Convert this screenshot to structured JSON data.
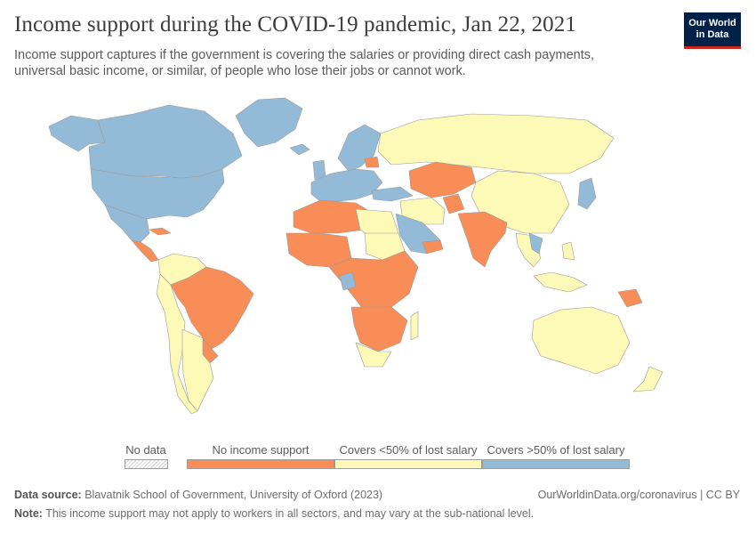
{
  "header": {
    "title": "Income support during the COVID-19 pandemic, Jan 22, 2021",
    "subtitle": "Income support captures if the government is covering the salaries or providing direct cash payments, universal basic income, or similar, of people who lose their jobs or cannot work."
  },
  "logo": {
    "line1": "Our World",
    "line2": "in Data"
  },
  "colors": {
    "no_data": "#e6e6e6",
    "no_support": "#f98d57",
    "under_50": "#fdfab7",
    "over_50": "#93bbd8",
    "border": "#999999"
  },
  "legend": {
    "no_data": "No data",
    "no_support": "No income support",
    "under_50": "Covers <50% of lost salary",
    "over_50": "Covers >50% of lost salary"
  },
  "footer": {
    "source_label": "Data source:",
    "source": "Blavatnik School of Government, University of Oxford (2023)",
    "url": "OurWorldinData.org/coronavirus | CC BY",
    "note_label": "Note:",
    "note": "This income support may not apply to workers in all sectors, and may vary at the sub-national level."
  }
}
